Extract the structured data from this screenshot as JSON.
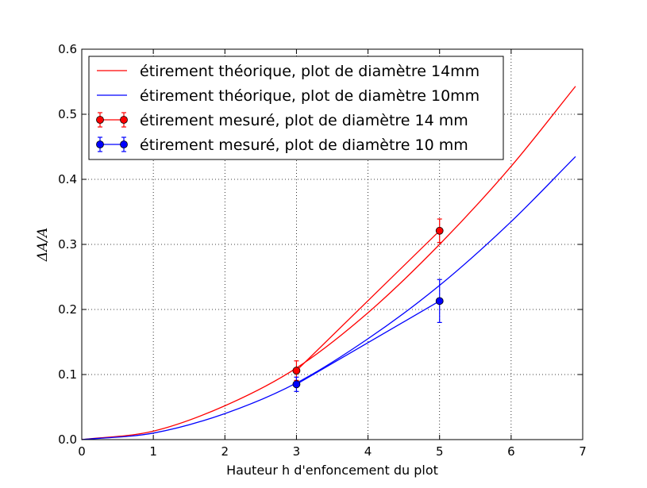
{
  "chart_data": {
    "type": "line",
    "xlabel": "Hauteur h d'enfoncement du plot",
    "ylabel": "ΔA/A",
    "xlim": [
      0,
      7
    ],
    "ylim": [
      0,
      0.6
    ],
    "xticks": [
      "0",
      "1",
      "2",
      "3",
      "4",
      "5",
      "6",
      "7"
    ],
    "yticks": [
      "0.0",
      "0.1",
      "0.2",
      "0.3",
      "0.4",
      "0.5",
      "0.6"
    ],
    "grid": true,
    "legend_position": "top-left",
    "series": [
      {
        "name": "étirement théorique, plot de diamètre 14mm",
        "kind": "line",
        "color": "#ff0000",
        "x": [
          0,
          1,
          2,
          3,
          4,
          5,
          6,
          6.9
        ],
        "y": [
          0,
          0.013,
          0.052,
          0.11,
          0.195,
          0.3,
          0.42,
          0.543
        ]
      },
      {
        "name": "étirement théorique, plot de diamètre 10mm",
        "kind": "line",
        "color": "#0000ff",
        "x": [
          0,
          1,
          2,
          3,
          4,
          5,
          6,
          6.9
        ],
        "y": [
          0,
          0.01,
          0.04,
          0.087,
          0.155,
          0.237,
          0.335,
          0.435
        ]
      },
      {
        "name": "étirement mesuré, plot de diamètre 14 mm",
        "kind": "errorbar",
        "color": "#ff0000",
        "x": [
          3,
          5
        ],
        "y": [
          0.106,
          0.321
        ],
        "yerr": [
          0.015,
          0.018
        ]
      },
      {
        "name": "étirement mesuré, plot de diamètre 10 mm",
        "kind": "errorbar",
        "color": "#0000ff",
        "x": [
          3,
          5
        ],
        "y": [
          0.085,
          0.213
        ],
        "yerr": [
          0.011,
          0.033
        ]
      }
    ]
  }
}
